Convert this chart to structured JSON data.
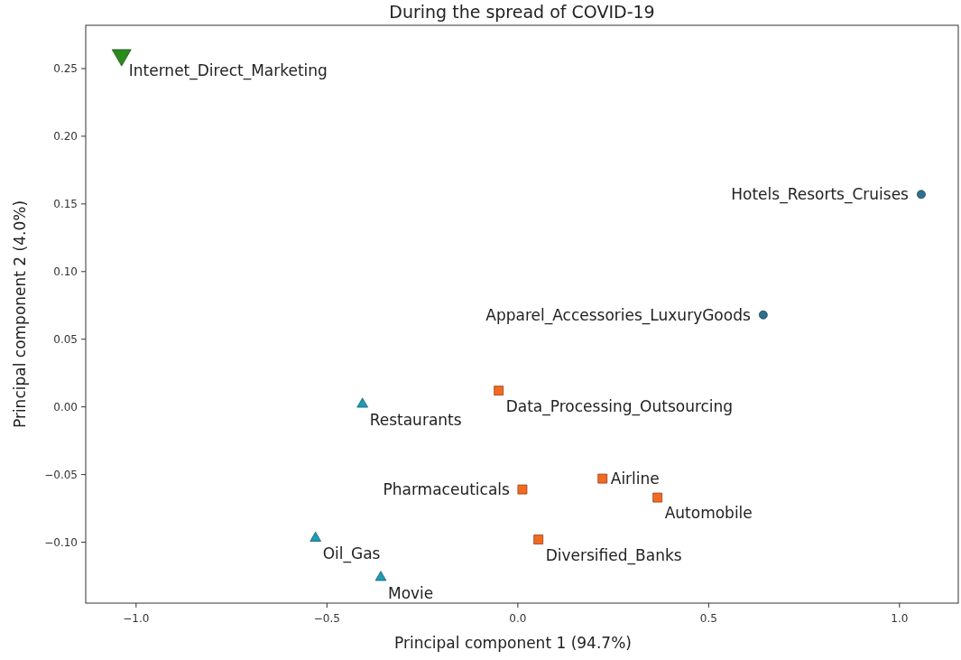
{
  "chart_data": {
    "type": "scatter",
    "title": "During the spread of COVID-19",
    "xlabel": "Principal component 1 (94.7%)",
    "ylabel": "Principal component 2 (4.0%)",
    "xlim": [
      -1.132,
      1.154
    ],
    "ylim": [
      -0.145,
      0.282
    ],
    "xticks": [
      {
        "value": -1,
        "label": "−1.0"
      },
      {
        "value": -0.5,
        "label": "−0.5"
      },
      {
        "value": 0,
        "label": "0.0"
      },
      {
        "value": 0.5,
        "label": "0.5"
      },
      {
        "value": 1,
        "label": "1.0"
      }
    ],
    "yticks": [
      {
        "value": -0.1,
        "label": "−0.10"
      },
      {
        "value": -0.05,
        "label": "−0.05"
      },
      {
        "value": 0,
        "label": "0.00"
      },
      {
        "value": 0.05,
        "label": "0.05"
      },
      {
        "value": 0.1,
        "label": "0.10"
      },
      {
        "value": 0.15,
        "label": "0.15"
      },
      {
        "value": 0.2,
        "label": "0.20"
      },
      {
        "value": 0.25,
        "label": "0.25"
      }
    ],
    "series": [
      {
        "color": "#2b8a1e",
        "marker": "triangle-down",
        "x": [
          -1.038
        ],
        "values": [
          0.26
        ]
      },
      {
        "color": "#2e6f8e",
        "marker": "circle",
        "x": [
          1.057,
          0.643
        ],
        "values": [
          0.157,
          0.068
        ]
      },
      {
        "color": "#1f9bb3",
        "marker": "triangle",
        "x": [
          -0.407,
          -0.53,
          -0.359
        ],
        "values": [
          0.002,
          -0.097,
          -0.126
        ]
      },
      {
        "color": "#f26a22",
        "marker": "square",
        "x": [
          -0.05,
          0.012,
          0.222,
          0.366,
          0.054
        ],
        "values": [
          0.012,
          -0.061,
          -0.053,
          -0.067,
          -0.098
        ]
      }
    ],
    "annotations": [
      {
        "text": "Internet_Direct_Marketing",
        "x": -1.038,
        "y": 0.26
      },
      {
        "text": "Hotels_Resorts_Cruises",
        "x": 1.057,
        "y": 0.157
      },
      {
        "text": "Apparel_Accessories_LuxuryGoods",
        "x": 0.643,
        "y": 0.068
      },
      {
        "text": "Restaurants",
        "x": -0.407,
        "y": 0.002
      },
      {
        "text": "Data_Processing_Outsourcing",
        "x": -0.05,
        "y": 0.012
      },
      {
        "text": "Airline",
        "x": 0.222,
        "y": -0.053
      },
      {
        "text": "Automobile",
        "x": 0.366,
        "y": -0.067
      },
      {
        "text": "Pharmaceuticals",
        "x": 0.012,
        "y": -0.061
      },
      {
        "text": "Oil_Gas",
        "x": -0.53,
        "y": -0.097
      },
      {
        "text": "Diversified_Banks",
        "x": 0.054,
        "y": -0.098
      },
      {
        "text": "Movie",
        "x": -0.359,
        "y": -0.126
      }
    ]
  }
}
